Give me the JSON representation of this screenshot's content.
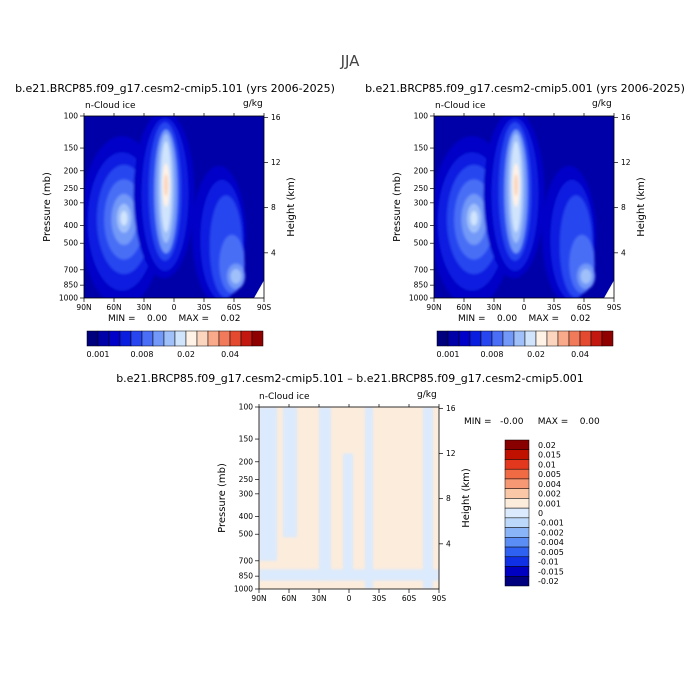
{
  "figure": {
    "season": "JJA",
    "colors": {
      "seq": [
        "#00007f",
        "#0000a8",
        "#0000c8",
        "#0a1ee0",
        "#2846f0",
        "#4a6ef6",
        "#7298f8",
        "#a0c0fa",
        "#d0e4fc",
        "#fff2e6",
        "#fcd5bf",
        "#f8aa8a",
        "#f17a5a",
        "#e44a2f",
        "#c3180f",
        "#8f0000"
      ],
      "diff": [
        "#00007f",
        "#0000c0",
        "#1030e6",
        "#2e60f2",
        "#5a8ef6",
        "#8ab4f8",
        "#bcd8fa",
        "#dbeafc",
        "#fcecdc",
        "#fac8a6",
        "#f79874",
        "#f06a44",
        "#e3381e",
        "#c01000",
        "#880000"
      ]
    },
    "panels": [
      {
        "id": "panel-101",
        "title": "b.e21.BRCP85.f09_g17.cesm2-cmip5.101 (yrs 2006-2025)",
        "variable": "n-Cloud ice",
        "units": "g/kg",
        "min_label": "MIN =",
        "min_value": "0.00",
        "max_label": "MAX =",
        "max_value": "0.02"
      },
      {
        "id": "panel-001",
        "title": "b.e21.BRCP85.f09_g17.cesm2-cmip5.001 (yrs 2006-2025)",
        "variable": "n-Cloud ice",
        "units": "g/kg",
        "min_label": "MIN =",
        "min_value": "0.00",
        "max_label": "MAX =",
        "max_value": "0.02"
      },
      {
        "id": "panel-diff",
        "title": "b.e21.BRCP85.f09_g17.cesm2-cmip5.101 – b.e21.BRCP85.f09_g17.cesm2-cmip5.001",
        "variable": "n-Cloud ice",
        "units": "g/kg",
        "min_label": "MIN =",
        "min_value": "-0.00",
        "max_label": "MAX =",
        "max_value": "0.00"
      }
    ],
    "top_colorbar_labels": [
      "0.001",
      "0.008",
      "0.02",
      "0.04"
    ],
    "diff_colorbar_labels": [
      "0.02",
      "0.015",
      "0.01",
      "0.005",
      "0.004",
      "0.002",
      "0.001",
      "0",
      "-0.001",
      "-0.002",
      "-0.004",
      "-0.005",
      "-0.01",
      "-0.015",
      "-0.02"
    ]
  },
  "chart_data": [
    {
      "type": "heatmap",
      "title": "b.e21.BRCP85.f09_g17.cesm2-cmip5.101 (yrs 2006-2025)",
      "variable": "n-Cloud ice",
      "units": "g/kg",
      "xlabel": "",
      "ylabel": "Pressure (mb)",
      "ylabel_right": "Height (km)",
      "x_ticks": [
        "90N",
        "60N",
        "30N",
        "0",
        "30S",
        "60S",
        "90S"
      ],
      "y_ticks": [
        "100",
        "150",
        "200",
        "250",
        "300",
        "400",
        "500",
        "700",
        "850",
        "1000"
      ],
      "y_right_ticks": [
        "16",
        "12",
        "8",
        "4"
      ],
      "ylim": [
        1000,
        100
      ],
      "levels": [
        0.001,
        0.008,
        0.02,
        0.04
      ],
      "min": 0.0,
      "max": 0.02,
      "features": [
        {
          "lat": 8,
          "pressure": 240,
          "value": 0.02,
          "note": "tropical maximum"
        },
        {
          "lat": 52,
          "pressure": 380,
          "value": 0.01,
          "note": "NH midlatitude maximum"
        },
        {
          "lat": -62,
          "pressure": 760,
          "value": 0.012,
          "note": "SH polar low-level maximum"
        }
      ]
    },
    {
      "type": "heatmap",
      "title": "b.e21.BRCP85.f09_g17.cesm2-cmip5.001 (yrs 2006-2025)",
      "variable": "n-Cloud ice",
      "units": "g/kg",
      "xlabel": "",
      "ylabel": "Pressure (mb)",
      "ylabel_right": "Height (km)",
      "x_ticks": [
        "90N",
        "60N",
        "30N",
        "0",
        "30S",
        "60S",
        "90S"
      ],
      "y_ticks": [
        "100",
        "150",
        "200",
        "250",
        "300",
        "400",
        "500",
        "700",
        "850",
        "1000"
      ],
      "y_right_ticks": [
        "16",
        "12",
        "8",
        "4"
      ],
      "ylim": [
        1000,
        100
      ],
      "levels": [
        0.001,
        0.008,
        0.02,
        0.04
      ],
      "min": 0.0,
      "max": 0.02,
      "features": [
        {
          "lat": 8,
          "pressure": 240,
          "value": 0.02,
          "note": "tropical maximum"
        },
        {
          "lat": 52,
          "pressure": 380,
          "value": 0.01,
          "note": "NH midlatitude maximum"
        },
        {
          "lat": -62,
          "pressure": 760,
          "value": 0.012,
          "note": "SH polar low-level maximum"
        }
      ]
    },
    {
      "type": "heatmap",
      "title": "b.e21.BRCP85.f09_g17.cesm2-cmip5.101 – b.e21.BRCP85.f09_g17.cesm2-cmip5.001",
      "variable": "n-Cloud ice",
      "units": "g/kg",
      "xlabel": "",
      "ylabel": "Pressure (mb)",
      "ylabel_right": "Height (km)",
      "x_ticks": [
        "90N",
        "60N",
        "30N",
        "0",
        "30S",
        "60S",
        "90S"
      ],
      "y_ticks": [
        "100",
        "150",
        "200",
        "250",
        "300",
        "400",
        "500",
        "700",
        "850",
        "1000"
      ],
      "y_right_ticks": [
        "16",
        "12",
        "8",
        "4"
      ],
      "ylim": [
        1000,
        100
      ],
      "levels": [
        -0.02,
        -0.015,
        -0.01,
        -0.005,
        -0.004,
        -0.002,
        -0.001,
        0,
        0.001,
        0.002,
        0.004,
        0.005,
        0.01,
        0.015,
        0.02
      ],
      "min": -0.0,
      "max": 0.0,
      "features": [
        {
          "value_range": [
            -0.001,
            0.001
          ],
          "note": "field alternates between slightly negative (light blue) and slightly positive (light peach) bands"
        }
      ]
    }
  ]
}
